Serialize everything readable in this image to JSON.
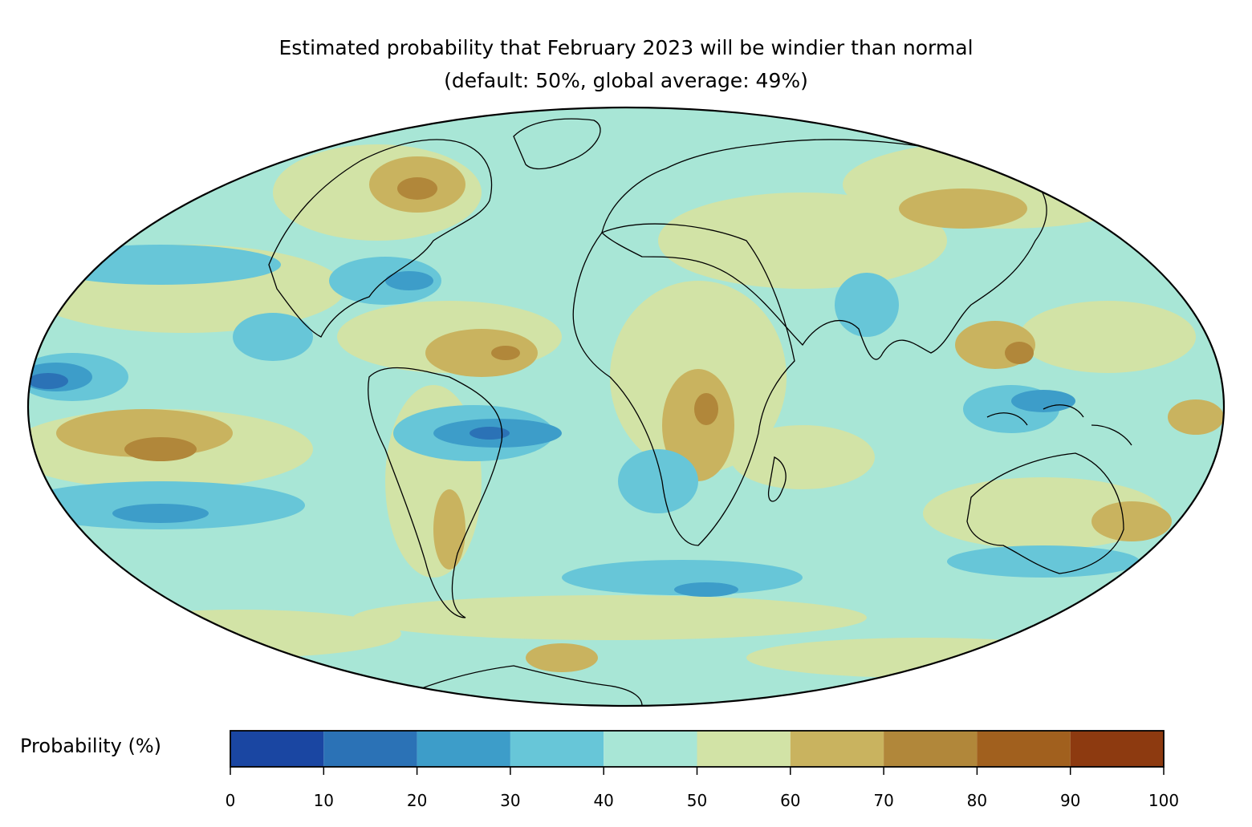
{
  "title": {
    "line1": "Estimated probability that February 2023 will be windier than normal",
    "line2": "(default: 50%, global average: 49%)"
  },
  "map": {
    "projection": "mollweide",
    "projection_center_longitude": 20,
    "elements": [
      "coastlines",
      "country-borders"
    ]
  },
  "colorbar": {
    "label": "Probability (%)",
    "ticks": [
      "0",
      "10",
      "20",
      "30",
      "40",
      "50",
      "60",
      "70",
      "80",
      "90",
      "100"
    ],
    "bins": [
      {
        "range": [
          0,
          10
        ],
        "color": "#1a46a2"
      },
      {
        "range": [
          10,
          20
        ],
        "color": "#2b72b6"
      },
      {
        "range": [
          20,
          30
        ],
        "color": "#3d9dc9"
      },
      {
        "range": [
          30,
          40
        ],
        "color": "#67c6d8"
      },
      {
        "range": [
          40,
          50
        ],
        "color": "#a8e6d6"
      },
      {
        "range": [
          50,
          60
        ],
        "color": "#d2e3a6"
      },
      {
        "range": [
          60,
          70
        ],
        "color": "#c9b35f"
      },
      {
        "range": [
          70,
          80
        ],
        "color": "#b1873a"
      },
      {
        "range": [
          80,
          90
        ],
        "color": "#a1601e"
      },
      {
        "range": [
          90,
          100
        ],
        "color": "#8d3a10"
      }
    ]
  }
}
